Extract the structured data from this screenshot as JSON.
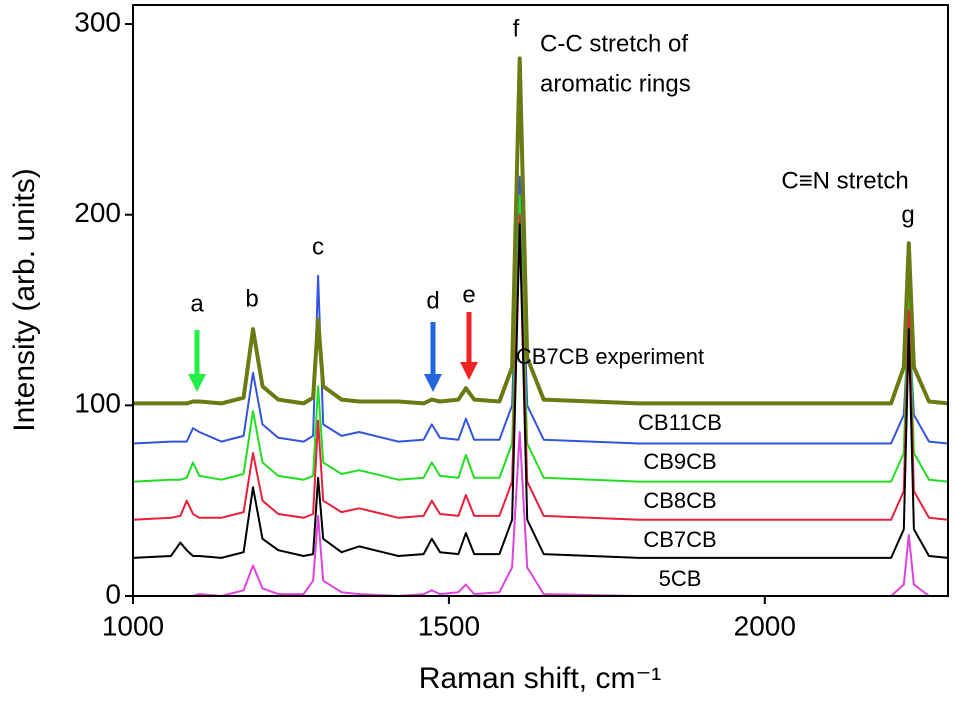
{
  "chart_data": {
    "type": "line",
    "x_label": "Raman shift, cm⁻¹",
    "y_label": "Intensity (arb. units)",
    "xlim": [
      1000,
      2290
    ],
    "ylim": [
      0,
      310
    ],
    "xticks": [
      1000,
      1500,
      2000
    ],
    "yticks": [
      0,
      100,
      200,
      300
    ],
    "x": [
      1000,
      1060,
      1075,
      1085,
      1095,
      1105,
      1140,
      1175,
      1190,
      1205,
      1230,
      1270,
      1285,
      1293,
      1301,
      1330,
      1358,
      1420,
      1460,
      1473,
      1486,
      1515,
      1527,
      1540,
      1580,
      1600,
      1612,
      1624,
      1650,
      1800,
      2000,
      2200,
      2220,
      2228,
      2236,
      2260,
      2290
    ],
    "series": [
      {
        "name": "CB11CB",
        "color": "#3355dd",
        "values": [
          80,
          81,
          81,
          81,
          88,
          86,
          81,
          84,
          117,
          90,
          83,
          81,
          84,
          168,
          90,
          84,
          86,
          81,
          82,
          90,
          83,
          82,
          93,
          82,
          82,
          100,
          220,
          100,
          82,
          80,
          80,
          80,
          95,
          145,
          95,
          81,
          80
        ]
      },
      {
        "name": "CB9CB",
        "color": "#22dd22",
        "values": [
          60,
          61,
          61,
          62,
          70,
          63,
          61,
          64,
          97,
          70,
          63,
          61,
          63,
          110,
          70,
          64,
          66,
          61,
          62,
          70,
          63,
          62,
          74,
          62,
          62,
          80,
          210,
          80,
          62,
          60,
          60,
          60,
          75,
          160,
          75,
          61,
          60
        ]
      },
      {
        "name": "CB8CB",
        "color": "#e8203c",
        "values": [
          40,
          41,
          42,
          50,
          43,
          41,
          41,
          44,
          75,
          50,
          43,
          41,
          43,
          92,
          50,
          44,
          46,
          41,
          42,
          50,
          43,
          42,
          53,
          42,
          42,
          60,
          200,
          60,
          42,
          40,
          40,
          40,
          55,
          150,
          55,
          41,
          40
        ]
      },
      {
        "name": "CB7CB",
        "color": "#000000",
        "values": [
          20,
          21,
          28,
          24,
          21,
          21,
          20,
          23,
          57,
          30,
          24,
          21,
          22,
          62,
          30,
          23,
          26,
          21,
          22,
          30,
          23,
          22,
          33,
          22,
          22,
          40,
          195,
          40,
          22,
          20,
          20,
          20,
          35,
          140,
          35,
          21,
          20
        ]
      },
      {
        "name": "5CB",
        "color": "#dd44dd",
        "values": [
          0,
          0,
          0,
          0,
          0,
          1,
          0,
          3,
          16,
          4,
          1,
          1,
          8,
          42,
          8,
          2,
          1,
          0,
          1,
          3,
          1,
          2,
          6,
          1,
          2,
          15,
          86,
          15,
          1,
          0,
          0,
          0,
          6,
          32,
          6,
          0,
          0
        ]
      },
      {
        "name": "CB7CB experiment",
        "color": "#6b7a12",
        "values": [
          101,
          101,
          101,
          101,
          102,
          102,
          101,
          104,
          140,
          110,
          103,
          101,
          104,
          145,
          110,
          103,
          102,
          102,
          101,
          103,
          102,
          103,
          109,
          103,
          102,
          120,
          282,
          125,
          103,
          101,
          101,
          101,
          120,
          185,
          120,
          102,
          101
        ]
      }
    ],
    "peak_labels": [
      "a",
      "b",
      "c",
      "d",
      "e",
      "f",
      "g"
    ],
    "annotations": [
      "C-C stretch of",
      "aromatic rings",
      "C≡N stretch"
    ]
  }
}
